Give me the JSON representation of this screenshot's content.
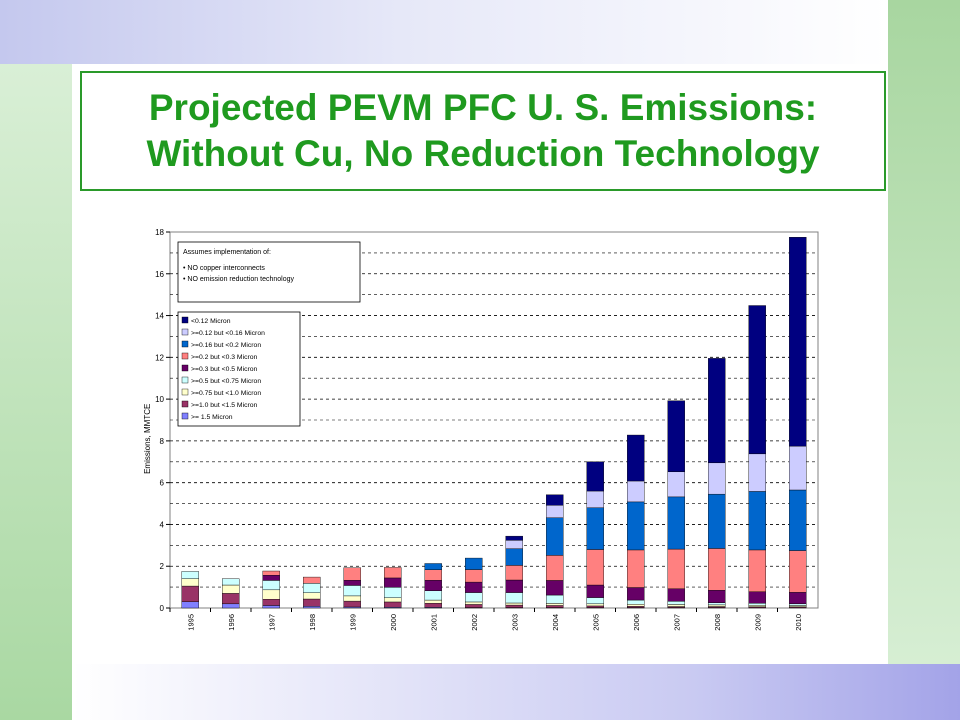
{
  "title": {
    "line1": "Projected PEVM PFC U. S. Emissions:",
    "line2": "Without Cu, No Reduction Technology"
  },
  "colors": {
    "title_green": "#1f9a1f"
  },
  "chart_data": {
    "type": "bar",
    "stacked": true,
    "ylabel": "Emissions, MMTCE",
    "ylim": [
      0,
      18
    ],
    "yticks": [
      0,
      2,
      4,
      6,
      8,
      10,
      12,
      14,
      16,
      18
    ],
    "grid": "horizontal dashed",
    "legend_position": "top-left",
    "categories": [
      "1995",
      "1996",
      "1997",
      "1998",
      "1999",
      "2000",
      "2001",
      "2002",
      "2003",
      "2004",
      "2005",
      "2006",
      "2007",
      "2008",
      "2009",
      "2010"
    ],
    "assumptions": {
      "heading": "Assumes implementation of:",
      "items": [
        "NO copper interconnects",
        "NO emission reduction technology"
      ]
    },
    "series": [
      {
        "name": ">= 1.5 Micron",
        "color": "#8080ff",
        "values": [
          0.3,
          0.2,
          0.12,
          0.08,
          0.05,
          0.04,
          0.03,
          0.02,
          0.02,
          0.02,
          0.02,
          0.02,
          0.02,
          0.02,
          0.02,
          0.02
        ]
      },
      {
        "name": ">=1.0 but <1.5 Micron",
        "color": "#993366",
        "values": [
          0.75,
          0.5,
          0.3,
          0.35,
          0.28,
          0.25,
          0.2,
          0.15,
          0.12,
          0.1,
          0.08,
          0.06,
          0.05,
          0.05,
          0.04,
          0.04
        ]
      },
      {
        "name": ">=0.75 but <1.0 Micron",
        "color": "#ffffcc",
        "values": [
          0.35,
          0.4,
          0.45,
          0.3,
          0.25,
          0.2,
          0.15,
          0.12,
          0.1,
          0.1,
          0.1,
          0.1,
          0.1,
          0.08,
          0.07,
          0.06
        ]
      },
      {
        "name": ">=0.5 but <0.75 Micron",
        "color": "#ccffff",
        "values": [
          0.35,
          0.3,
          0.45,
          0.45,
          0.5,
          0.5,
          0.45,
          0.45,
          0.5,
          0.4,
          0.3,
          0.2,
          0.15,
          0.1,
          0.1,
          0.08
        ]
      },
      {
        "name": ">=0.3 but <0.5 Micron",
        "color": "#660066",
        "values": [
          0.0,
          0.0,
          0.25,
          0.0,
          0.25,
          0.45,
          0.5,
          0.5,
          0.6,
          0.7,
          0.6,
          0.6,
          0.6,
          0.6,
          0.55,
          0.55
        ]
      },
      {
        "name": ">=0.2 but <0.3 Micron",
        "color": "#ff8080",
        "values": [
          0.0,
          0.0,
          0.2,
          0.3,
          0.6,
          0.5,
          0.5,
          0.6,
          0.7,
          1.2,
          1.7,
          1.8,
          1.9,
          2.0,
          2.0,
          2.0
        ]
      },
      {
        "name": ">=0.16 but <0.2 Micron",
        "color": "#0066cc",
        "values": [
          0.0,
          0.0,
          0.0,
          0.0,
          0.0,
          0.0,
          0.3,
          0.55,
          0.8,
          1.8,
          2.0,
          2.3,
          2.5,
          2.6,
          2.8,
          2.9
        ]
      },
      {
        "name": ">=0.12 but <0.16 Micron",
        "color": "#ccccff",
        "values": [
          0.0,
          0.0,
          0.0,
          0.0,
          0.0,
          0.0,
          0.0,
          0.0,
          0.4,
          0.6,
          0.8,
          1.0,
          1.2,
          1.5,
          1.8,
          2.1
        ]
      },
      {
        "name": "<0.12 Micron",
        "color": "#000080",
        "values": [
          0.0,
          0.0,
          0.0,
          0.0,
          0.0,
          0.0,
          0.0,
          0.0,
          0.2,
          0.5,
          1.4,
          2.2,
          3.4,
          5.0,
          7.1,
          10.0
        ]
      }
    ]
  }
}
